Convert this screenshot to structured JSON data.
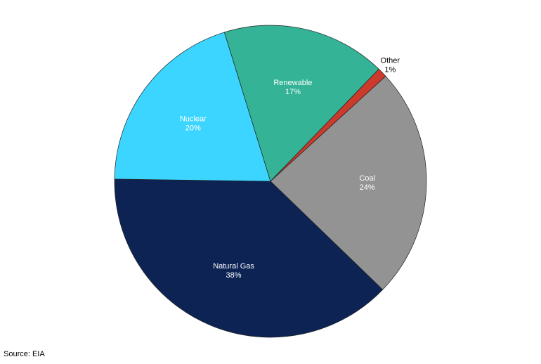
{
  "chart_data": {
    "type": "pie",
    "categories": [
      "Coal",
      "Natural Gas",
      "Nuclear",
      "Renewable",
      "Other"
    ],
    "values": [
      24,
      38,
      20,
      17,
      1
    ],
    "value_labels": [
      "24%",
      "38%",
      "20%",
      "17%",
      "1%"
    ],
    "colors": [
      "#939393",
      "#0c2354",
      "#3bd5ff",
      "#34b396",
      "#cc3a2b"
    ],
    "source": "Source: EIA"
  }
}
